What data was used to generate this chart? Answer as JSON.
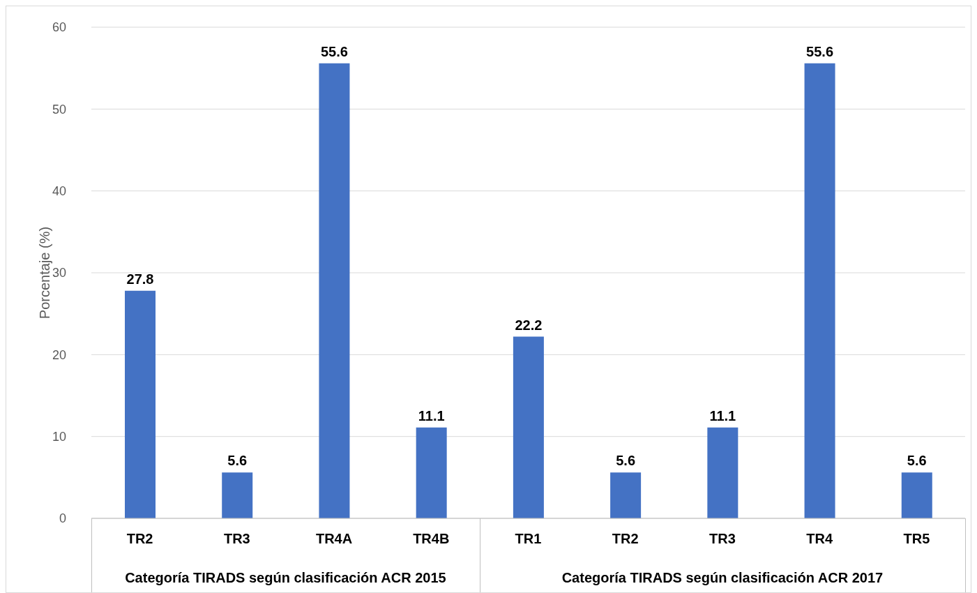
{
  "chart_data": {
    "type": "bar",
    "ylabel": "Porcentaje (%)",
    "categories": [
      "TR2",
      "TR3",
      "TR4A",
      "TR4B",
      "TR1",
      "TR2",
      "TR3",
      "TR4",
      "TR5"
    ],
    "values": [
      27.8,
      5.6,
      55.6,
      11.1,
      22.2,
      5.6,
      11.1,
      55.6,
      5.6
    ],
    "color": "#4472c4",
    "ylim": [
      0,
      60
    ],
    "yticks": [
      0,
      10,
      20,
      30,
      40,
      50,
      60
    ],
    "grid": "y",
    "legend": false,
    "data_labels": true,
    "annotations": [
      "Categoría TIRADS según clasificación ACR 2015",
      "Categoría TIRADS según clasificación ACR 2017"
    ]
  }
}
